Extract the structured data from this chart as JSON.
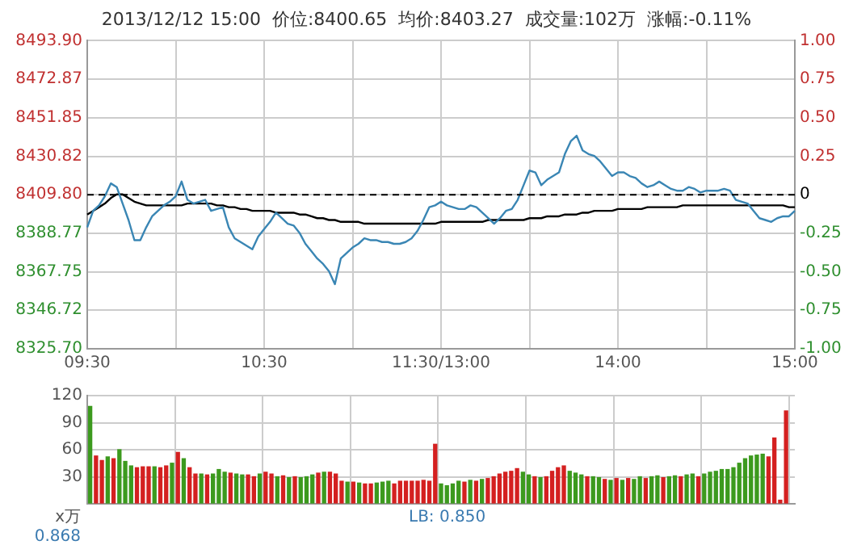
{
  "chart_data": [
    {
      "type": "line",
      "title": "2013/12/12 15:00  价位:8400.65  均价:8403.27  成交量:102万  涨幅:-0.11%",
      "grid": true,
      "line_style": "solid",
      "categories": [
        "09:30",
        null,
        null,
        null,
        null,
        null,
        null,
        null,
        null,
        null,
        null,
        null,
        null,
        null,
        null,
        null,
        null,
        null,
        null,
        null,
        null,
        null,
        null,
        null,
        null,
        null,
        null,
        null,
        null,
        null,
        "10:30",
        null,
        null,
        null,
        null,
        null,
        null,
        null,
        null,
        null,
        null,
        null,
        null,
        null,
        null,
        null,
        null,
        null,
        null,
        null,
        null,
        null,
        null,
        null,
        null,
        null,
        null,
        null,
        null,
        null,
        "11:30/13:00",
        null,
        null,
        null,
        null,
        null,
        null,
        null,
        null,
        null,
        null,
        null,
        null,
        null,
        null,
        null,
        null,
        null,
        null,
        null,
        null,
        null,
        null,
        null,
        null,
        null,
        null,
        null,
        null,
        null,
        "14:00",
        null,
        null,
        null,
        null,
        null,
        null,
        null,
        null,
        null,
        null,
        null,
        null,
        null,
        null,
        null,
        null,
        null,
        null,
        null,
        null,
        null,
        null,
        null,
        null,
        null,
        null,
        null,
        null,
        null,
        "15:00"
      ],
      "ylim": [
        8325.7,
        8493.9
      ],
      "yticks": [
        {
          "value": 8325.7,
          "label": "8325.70"
        },
        {
          "value": 8346.72,
          "label": "8346.72"
        },
        {
          "value": 8367.75,
          "label": "8367.75"
        },
        {
          "value": 8388.77,
          "label": "8388.77"
        },
        {
          "value": 8409.8,
          "label": "8409.80"
        },
        {
          "value": 8430.82,
          "label": "8430.82"
        },
        {
          "value": 8451.85,
          "label": "8451.85"
        },
        {
          "value": 8472.87,
          "label": "8472.87"
        },
        {
          "value": 8493.9,
          "label": "8493.90"
        }
      ],
      "y2lim": [
        -1,
        1
      ],
      "y2ticks": [
        {
          "value": -1,
          "label": "-1.00"
        },
        {
          "value": -0.75,
          "label": "-0.75"
        },
        {
          "value": -0.5,
          "label": "-0.50"
        },
        {
          "value": -0.25,
          "label": "-0.25"
        },
        0,
        {
          "value": 0.25,
          "label": "0.25"
        },
        {
          "value": 0.5,
          "label": "0.50"
        },
        {
          "value": 0.75,
          "label": "0.75"
        },
        {
          "value": 1,
          "label": "1.00"
        }
      ],
      "ref_lines": [
        {
          "axis": "y",
          "value": 8409.8,
          "color": "#000000",
          "line_style": "dashed"
        }
      ],
      "series": [
        {
          "color": "#3a86b4",
          "values": [
            8392,
            8401,
            8404,
            8409,
            8416,
            8414,
            8405,
            8396,
            8385,
            8385,
            8392,
            8398,
            8401,
            8404,
            8406,
            8409,
            8417,
            8407,
            8405,
            8406,
            8407,
            8401,
            8402,
            8403,
            8392,
            8386,
            8384,
            8382,
            8380,
            8387,
            8391,
            8395,
            8400,
            8397,
            8394,
            8393,
            8389,
            8383,
            8379,
            8375,
            8372,
            8368,
            8361,
            8375,
            8378,
            8381,
            8383,
            8386,
            8385,
            8385,
            8384,
            8384,
            8383,
            8383,
            8384,
            8386,
            8390,
            8396,
            8403,
            8404,
            8406,
            8404,
            8403,
            8402,
            8402,
            8404,
            8403,
            8400,
            8397,
            8394,
            8397,
            8401,
            8402,
            8407,
            8415,
            8423,
            8422,
            8415,
            8418,
            8420,
            8422,
            8432,
            8439,
            8442,
            8434,
            8432,
            8431,
            8428,
            8424,
            8420,
            8422,
            8422,
            8420,
            8419,
            8416,
            8414,
            8415,
            8417,
            8415,
            8413,
            8412,
            8412,
            8414,
            8413,
            8411,
            8412,
            8412,
            8412,
            8413,
            8412,
            8407,
            8406,
            8405,
            8401,
            8397,
            8396,
            8395,
            8397,
            8398,
            8398,
            8401
          ]
        },
        {
          "color": "#000000",
          "values": [
            8399,
            8401,
            8403,
            8405,
            8408,
            8410,
            8410,
            8408,
            8406,
            8405,
            8404,
            8404,
            8404,
            8404,
            8404,
            8404,
            8404,
            8405,
            8405,
            8405,
            8405,
            8405,
            8404,
            8404,
            8403,
            8403,
            8402,
            8402,
            8401,
            8401,
            8401,
            8401,
            8400,
            8400,
            8400,
            8400,
            8399,
            8399,
            8398,
            8397,
            8397,
            8396,
            8396,
            8395,
            8395,
            8395,
            8395,
            8394,
            8394,
            8394,
            8394,
            8394,
            8394,
            8394,
            8394,
            8394,
            8394,
            8394,
            8394,
            8394,
            8395,
            8395,
            8395,
            8395,
            8395,
            8395,
            8395,
            8395,
            8396,
            8396,
            8396,
            8396,
            8396,
            8396,
            8396,
            8397,
            8397,
            8397,
            8398,
            8398,
            8398,
            8399,
            8399,
            8399,
            8400,
            8400,
            8401,
            8401,
            8401,
            8401,
            8402,
            8402,
            8402,
            8402,
            8402,
            8403,
            8403,
            8403,
            8403,
            8403,
            8403,
            8404,
            8404,
            8404,
            8404,
            8404,
            8404,
            8404,
            8404,
            8404,
            8404,
            8404,
            8404,
            8404,
            8404,
            8404,
            8404,
            8404,
            8404,
            8403,
            8403
          ]
        }
      ]
    },
    {
      "type": "bar",
      "ylabel": "x万",
      "grid": true,
      "tick_labels": "y",
      "categories": [
        null,
        null,
        null,
        null,
        null,
        null,
        null,
        null,
        null,
        null,
        null,
        null,
        null,
        null,
        null,
        null,
        null,
        null,
        null,
        null,
        null,
        null,
        null,
        null,
        null,
        null,
        null,
        null,
        null,
        null,
        null,
        null,
        null,
        null,
        null,
        null,
        null,
        null,
        null,
        null,
        null,
        null,
        null,
        null,
        null,
        null,
        null,
        null,
        null,
        null,
        null,
        null,
        null,
        null,
        null,
        null,
        null,
        null,
        null,
        null,
        null,
        null,
        null,
        null,
        null,
        null,
        null,
        null,
        null,
        null,
        null,
        null,
        null,
        null,
        null,
        null,
        null,
        null,
        null,
        null,
        null,
        null,
        null,
        null,
        null,
        null,
        null,
        null,
        null,
        null,
        null,
        null,
        null,
        null,
        null,
        null,
        null,
        null,
        null,
        null,
        null,
        null,
        null,
        null,
        null,
        null,
        null,
        null,
        null,
        null,
        null,
        null,
        null,
        null,
        null,
        null,
        null,
        null,
        null,
        null,
        null
      ],
      "ylim": [
        0,
        120
      ],
      "yticks": [
        {
          "value": 0,
          "label": null
        },
        30,
        60,
        90,
        120
      ],
      "annotations": [
        "LB: 0.850",
        "0.868"
      ],
      "values": [
        108,
        53,
        48,
        52,
        50,
        60,
        47,
        42,
        40,
        41,
        41,
        41,
        40,
        42,
        45,
        57,
        50,
        40,
        33,
        33,
        32,
        33,
        38,
        35,
        34,
        33,
        32,
        32,
        30,
        33,
        35,
        33,
        30,
        31,
        29,
        30,
        29,
        30,
        32,
        34,
        35,
        35,
        33,
        25,
        24,
        24,
        23,
        22,
        22,
        23,
        24,
        25,
        22,
        25,
        25,
        25,
        25,
        26,
        25,
        66,
        22,
        20,
        22,
        25,
        24,
        26,
        25,
        27,
        28,
        30,
        33,
        35,
        36,
        39,
        35,
        32,
        30,
        29,
        30,
        36,
        40,
        42,
        36,
        34,
        32,
        30,
        30,
        29,
        27,
        26,
        28,
        26,
        28,
        27,
        30,
        28,
        30,
        31,
        29,
        30,
        31,
        30,
        32,
        33,
        30,
        33,
        35,
        36,
        38,
        38,
        40,
        45,
        50,
        53,
        54,
        55,
        52,
        73,
        4,
        103,
        null
      ],
      "colors": [
        "#3c9a1e",
        "#d42020",
        "#d42020",
        "#3c9a1e",
        "#d42020",
        "#3c9a1e",
        "#3c9a1e",
        "#3c9a1e",
        "#d42020",
        "#d42020",
        "#d42020",
        "#3c9a1e",
        "#d42020",
        "#d42020",
        "#3c9a1e",
        "#d42020",
        "#3c9a1e",
        "#d42020",
        "#d42020",
        "#3c9a1e",
        "#d42020",
        "#3c9a1e",
        "#3c9a1e",
        "#3c9a1e",
        "#d42020",
        "#3c9a1e",
        "#3c9a1e",
        "#d42020",
        "#d42020",
        "#3c9a1e",
        "#d42020",
        "#d42020",
        "#3c9a1e",
        "#d42020",
        "#3c9a1e",
        "#d42020",
        "#3c9a1e",
        "#3c9a1e",
        "#3c9a1e",
        "#d42020",
        "#3c9a1e",
        "#d42020",
        "#d42020",
        "#d42020",
        "#3c9a1e",
        "#d42020",
        "#3c9a1e",
        "#d42020",
        "#d42020",
        "#3c9a1e",
        "#3c9a1e",
        "#3c9a1e",
        "#d42020",
        "#d42020",
        "#d42020",
        "#d42020",
        "#d42020",
        "#d42020",
        "#d42020",
        "#d42020",
        "#3c9a1e",
        "#3c9a1e",
        "#3c9a1e",
        "#3c9a1e",
        "#d42020",
        "#3c9a1e",
        "#d42020",
        "#3c9a1e",
        "#d42020",
        "#d42020",
        "#d42020",
        "#d42020",
        "#d42020",
        "#d42020",
        "#3c9a1e",
        "#3c9a1e",
        "#d42020",
        "#3c9a1e",
        "#d42020",
        "#d42020",
        "#d42020",
        "#d42020",
        "#3c9a1e",
        "#3c9a1e",
        "#3c9a1e",
        "#d42020",
        "#3c9a1e",
        "#3c9a1e",
        "#d42020",
        "#3c9a1e",
        "#d42020",
        "#3c9a1e",
        "#d42020",
        "#3c9a1e",
        "#3c9a1e",
        "#d42020",
        "#3c9a1e",
        "#3c9a1e",
        "#d42020",
        "#3c9a1e",
        "#3c9a1e",
        "#d42020",
        "#3c9a1e",
        "#3c9a1e",
        "#d42020",
        "#3c9a1e",
        "#3c9a1e",
        "#3c9a1e",
        "#3c9a1e",
        "#3c9a1e",
        "#3c9a1e",
        "#3c9a1e",
        "#3c9a1e",
        "#3c9a1e",
        "#3c9a1e",
        "#3c9a1e",
        "#d42020",
        "#d42020",
        "#d42020",
        "#d42020",
        "#d42020"
      ]
    }
  ]
}
